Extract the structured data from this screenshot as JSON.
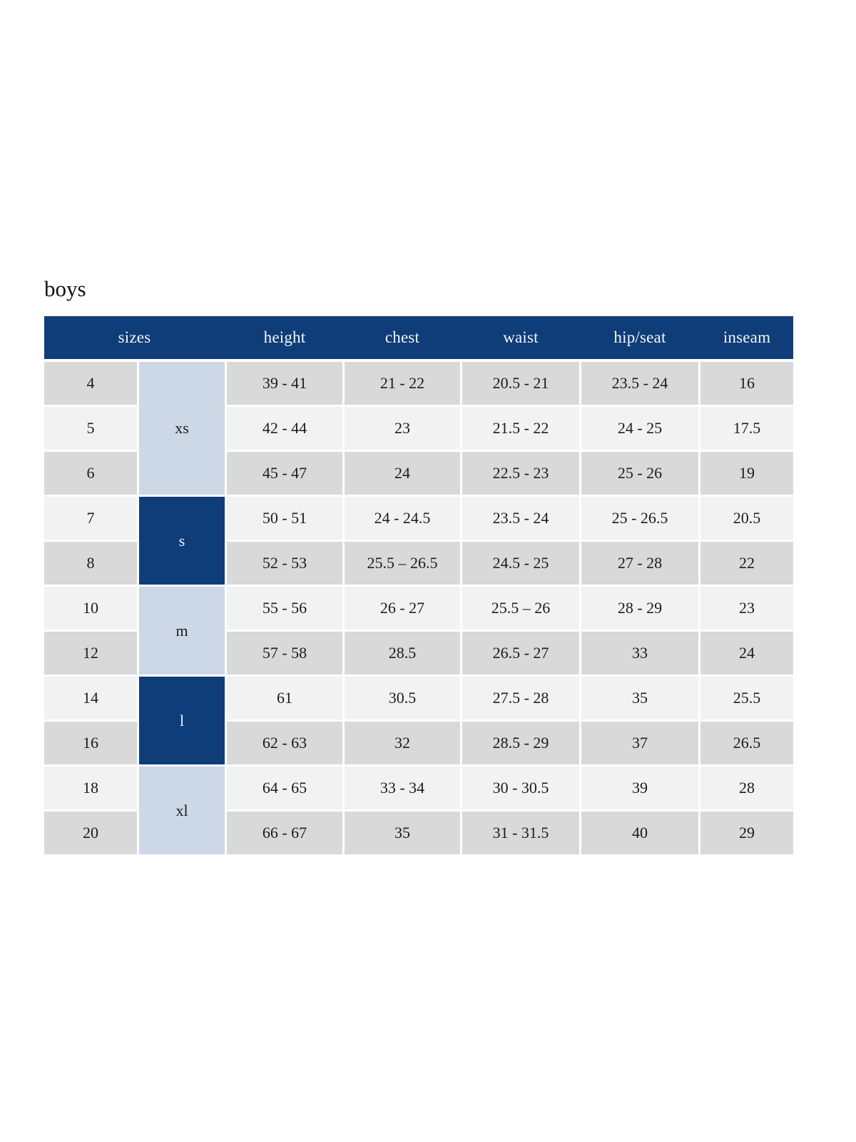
{
  "title": "boys",
  "colors": {
    "header_bg": "#0e3d7a",
    "group_dark_bg": "#0e3d7a",
    "group_light_bg": "#ccd8e6",
    "row_dark_bg": "#d9d9d9",
    "row_light_bg": "#f2f2f2",
    "header_text": "#f4f6f9",
    "body_text": "#1c1c1c"
  },
  "table": {
    "headers": [
      "sizes",
      "height",
      "chest",
      "waist",
      "hip/seat",
      "inseam"
    ],
    "groups": [
      {
        "label": "xs",
        "rows": 3,
        "style": "light"
      },
      {
        "label": "s",
        "rows": 2,
        "style": "dark"
      },
      {
        "label": "m",
        "rows": 2,
        "style": "light"
      },
      {
        "label": "l",
        "rows": 2,
        "style": "dark"
      },
      {
        "label": "xl",
        "rows": 2,
        "style": "light"
      }
    ],
    "rows": [
      {
        "size": "4",
        "height": "39 - 41",
        "chest": "21 - 22",
        "waist": "20.5 - 21",
        "hip_seat": "23.5 - 24",
        "inseam": "16"
      },
      {
        "size": "5",
        "height": "42 - 44",
        "chest": "23",
        "waist": "21.5 - 22",
        "hip_seat": "24 - 25",
        "inseam": "17.5"
      },
      {
        "size": "6",
        "height": "45 - 47",
        "chest": "24",
        "waist": "22.5 - 23",
        "hip_seat": "25 - 26",
        "inseam": "19"
      },
      {
        "size": "7",
        "height": "50 - 51",
        "chest": "24 - 24.5",
        "waist": "23.5 - 24",
        "hip_seat": "25 - 26.5",
        "inseam": "20.5"
      },
      {
        "size": "8",
        "height": "52 - 53",
        "chest": "25.5 – 26.5",
        "waist": "24.5 - 25",
        "hip_seat": "27 - 28",
        "inseam": "22"
      },
      {
        "size": "10",
        "height": "55 - 56",
        "chest": "26 - 27",
        "waist": "25.5 – 26",
        "hip_seat": "28 - 29",
        "inseam": "23"
      },
      {
        "size": "12",
        "height": "57 - 58",
        "chest": "28.5",
        "waist": "26.5 - 27",
        "hip_seat": "33",
        "inseam": "24"
      },
      {
        "size": "14",
        "height": "61",
        "chest": "30.5",
        "waist": "27.5 - 28",
        "hip_seat": "35",
        "inseam": "25.5"
      },
      {
        "size": "16",
        "height": "62 - 63",
        "chest": "32",
        "waist": "28.5 - 29",
        "hip_seat": "37",
        "inseam": "26.5"
      },
      {
        "size": "18",
        "height": "64 - 65",
        "chest": "33 - 34",
        "waist": "30 - 30.5",
        "hip_seat": "39",
        "inseam": "28"
      },
      {
        "size": "20",
        "height": "66 - 67",
        "chest": "35",
        "waist": "31 - 31.5",
        "hip_seat": "40",
        "inseam": "29"
      }
    ]
  }
}
